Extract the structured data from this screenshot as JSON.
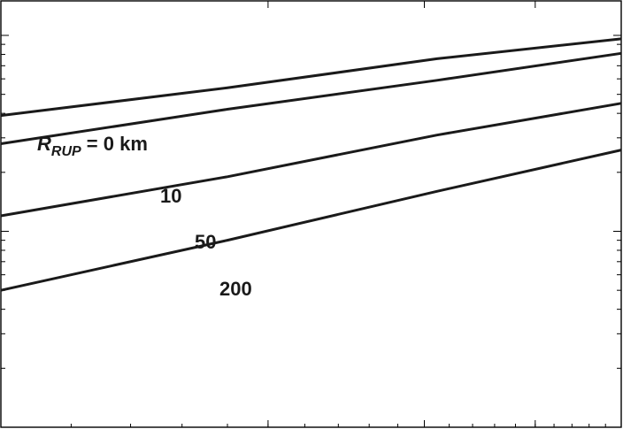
{
  "chart_data": {
    "type": "line",
    "title": "",
    "xlabel": "",
    "ylabel": "",
    "x_scale": "log",
    "y_scale": "log",
    "xlim": [
      1,
      5
    ],
    "ylim": [
      0.01,
      1.5
    ],
    "grid": false,
    "line_color": "#1a1a1a",
    "series": [
      {
        "name": "R_RUP = 0 km",
        "label_main": "R",
        "label_sub": "RUP",
        "label_tail": " = 0 km",
        "x": [
          1,
          1.8,
          3.1,
          5
        ],
        "y": [
          0.39,
          0.54,
          0.76,
          0.96
        ]
      },
      {
        "name": "10",
        "label": "10",
        "x": [
          1,
          1.8,
          3.1,
          5
        ],
        "y": [
          0.28,
          0.42,
          0.59,
          0.81
        ]
      },
      {
        "name": "50",
        "label": "50",
        "x": [
          1,
          1.8,
          3.1,
          5
        ],
        "y": [
          0.12,
          0.19,
          0.31,
          0.45
        ]
      },
      {
        "name": "200",
        "label": "200",
        "x": [
          1,
          1.8,
          3.1,
          5
        ],
        "y": [
          0.05,
          0.09,
          0.16,
          0.26
        ]
      }
    ]
  }
}
